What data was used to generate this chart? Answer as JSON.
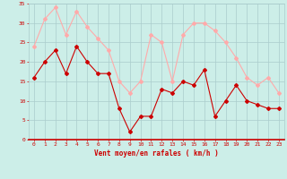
{
  "x": [
    0,
    1,
    2,
    3,
    4,
    5,
    6,
    7,
    8,
    9,
    10,
    11,
    12,
    13,
    14,
    15,
    16,
    17,
    18,
    19,
    20,
    21,
    22,
    23
  ],
  "vent_moyen": [
    16,
    20,
    23,
    17,
    24,
    20,
    17,
    17,
    8,
    2,
    6,
    6,
    13,
    12,
    15,
    14,
    18,
    6,
    10,
    14,
    10,
    9,
    8,
    8
  ],
  "rafales": [
    24,
    31,
    34,
    27,
    33,
    29,
    26,
    23,
    15,
    12,
    15,
    27,
    25,
    15,
    27,
    30,
    30,
    28,
    25,
    21,
    16,
    14,
    16,
    12
  ],
  "color_moyen": "#cc0000",
  "color_rafales": "#ffaaaa",
  "bg_color": "#cceee8",
  "grid_color": "#aacccc",
  "xlabel": "Vent moyen/en rafales ( km/h )",
  "ylim": [
    0,
    35
  ],
  "xlim": [
    -0.5,
    23.5
  ],
  "yticks": [
    0,
    5,
    10,
    15,
    20,
    25,
    30,
    35
  ],
  "xticks": [
    0,
    1,
    2,
    3,
    4,
    5,
    6,
    7,
    8,
    9,
    10,
    11,
    12,
    13,
    14,
    15,
    16,
    17,
    18,
    19,
    20,
    21,
    22,
    23
  ],
  "tick_fontsize": 4.5,
  "xlabel_fontsize": 5.5
}
